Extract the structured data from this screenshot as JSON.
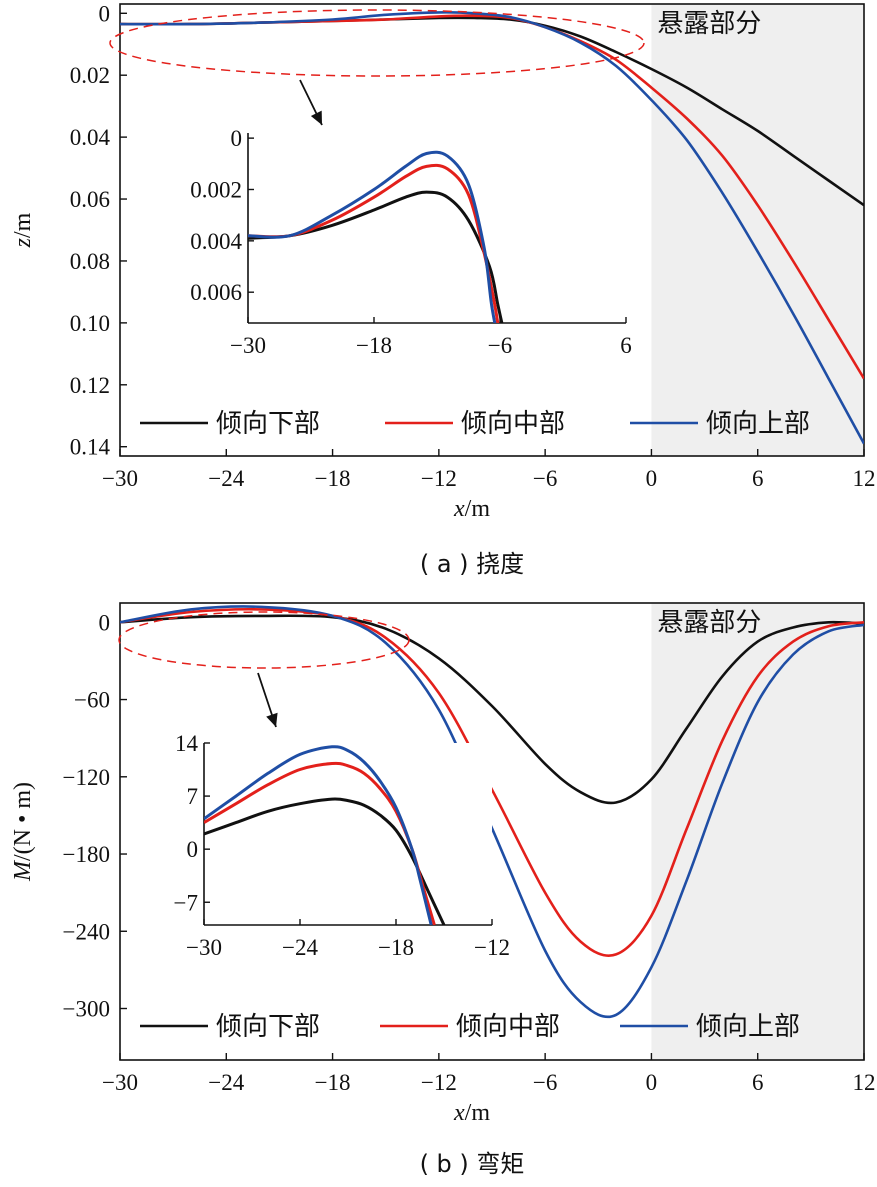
{
  "colors": {
    "lower": "#111111",
    "middle": "#e3201b",
    "upper": "#1f4ea5",
    "region": "#efefef",
    "ellipse": "#e3201b"
  },
  "chart_data": [
    {
      "type": "line",
      "panel": "a",
      "caption": "( a ) 挠度",
      "xlabel_var": "x",
      "xlabel_unit": "/m",
      "ylabel_var": "z",
      "ylabel_unit": "/m",
      "xlim": [
        -30,
        12
      ],
      "ylim": [
        -0.003,
        0.143
      ],
      "y_inverted": true,
      "xticks": [
        -30,
        -24,
        -18,
        -12,
        -6,
        0,
        6,
        12
      ],
      "yticks": [
        0,
        0.02,
        0.04,
        0.06,
        0.08,
        0.1,
        0.12,
        0.14
      ],
      "ytick_labels": [
        "0",
        "0.02",
        "0.04",
        "0.06",
        "0.08",
        "0.10",
        "0.12",
        "0.14"
      ],
      "shaded_region": {
        "x_from": 0,
        "x_to": 12,
        "label": "悬露部分"
      },
      "legend": [
        "倾向下部",
        "倾向中部",
        "倾向上部"
      ],
      "series": [
        {
          "name": "倾向下部",
          "x": [
            -30,
            -26,
            -22,
            -18,
            -15,
            -12,
            -10,
            -8,
            -6,
            -4,
            -2,
            0,
            2,
            4,
            6,
            8,
            10,
            12
          ],
          "y": [
            0.0035,
            0.0035,
            0.003,
            0.0025,
            0.002,
            0.0015,
            0.0015,
            0.002,
            0.004,
            0.0075,
            0.0125,
            0.018,
            0.024,
            0.031,
            0.038,
            0.046,
            0.054,
            0.062
          ]
        },
        {
          "name": "倾向中部",
          "x": [
            -30,
            -26,
            -22,
            -18,
            -15,
            -12,
            -10,
            -8,
            -6,
            -4,
            -2,
            0,
            2,
            4,
            6,
            8,
            10,
            12
          ],
          "y": [
            0.0035,
            0.0035,
            0.003,
            0.0025,
            0.002,
            0.001,
            0.0008,
            0.0015,
            0.0045,
            0.009,
            0.015,
            0.024,
            0.034,
            0.046,
            0.062,
            0.08,
            0.099,
            0.118
          ]
        },
        {
          "name": "倾向上部",
          "x": [
            -30,
            -26,
            -22,
            -18,
            -15,
            -12,
            -10,
            -8,
            -6,
            -4,
            -2,
            0,
            2,
            4,
            6,
            8,
            10,
            12
          ],
          "y": [
            0.0035,
            0.0035,
            0.003,
            0.002,
            0.0005,
            -0.0003,
            0,
            0.0012,
            0.0045,
            0.0095,
            0.017,
            0.028,
            0.041,
            0.058,
            0.077,
            0.097,
            0.118,
            0.139
          ]
        }
      ],
      "inset": {
        "xlim": [
          -30,
          6
        ],
        "ylim": [
          -0.0002,
          0.0072
        ],
        "y_inverted": true,
        "xticks": [
          -30,
          -18,
          -6,
          6
        ],
        "yticks": [
          0,
          0.002,
          0.004,
          0.006
        ],
        "ytick_labels": [
          "0",
          "0.002",
          "0.004",
          "0.006"
        ],
        "series": [
          {
            "name": "倾向下部",
            "x": [
              -30,
              -26,
              -22,
              -18,
              -15,
              -13,
              -11,
              -9,
              -7,
              -6.2,
              -5.5
            ],
            "y": [
              0.0039,
              0.0038,
              0.0034,
              0.0028,
              0.0023,
              0.0021,
              0.0023,
              0.0032,
              0.005,
              0.0065,
              0.0078
            ]
          },
          {
            "name": "倾向中部",
            "x": [
              -30,
              -26,
              -22,
              -18,
              -15,
              -13,
              -11,
              -9,
              -7.5,
              -6.5,
              -6
            ],
            "y": [
              0.0038,
              0.0038,
              0.0032,
              0.0023,
              0.0015,
              0.0011,
              0.0012,
              0.0022,
              0.0045,
              0.0065,
              0.0078
            ]
          },
          {
            "name": "倾向上部",
            "x": [
              -30,
              -26,
              -22,
              -18,
              -15,
              -13,
              -11,
              -9,
              -7.5,
              -6.8,
              -6.2
            ],
            "y": [
              0.0038,
              0.0038,
              0.003,
              0.002,
              0.0011,
              0.0006,
              0.0007,
              0.0018,
              0.0043,
              0.0065,
              0.0078
            ]
          }
        ]
      }
    },
    {
      "type": "line",
      "panel": "b",
      "caption": "( b ) 弯矩",
      "xlabel_var": "x",
      "xlabel_unit": "/m",
      "ylabel_var": "M",
      "ylabel_unit": "/(N • m)",
      "xlim": [
        -30,
        12
      ],
      "ylim": [
        -340,
        15
      ],
      "xticks": [
        -30,
        -24,
        -18,
        -12,
        -6,
        0,
        6,
        12
      ],
      "yticks": [
        0,
        -60,
        -120,
        -180,
        -240,
        -300
      ],
      "ytick_labels": [
        "0",
        "−60",
        "−120",
        "−180",
        "−240",
        "−300"
      ],
      "shaded_region": {
        "x_from": 0,
        "x_to": 12,
        "label": "悬露部分"
      },
      "legend": [
        "倾向下部",
        "倾向中部",
        "倾向上部"
      ],
      "series": [
        {
          "name": "倾向下部",
          "x": [
            -30,
            -26,
            -22,
            -18,
            -15,
            -12,
            -9,
            -6,
            -4,
            -2,
            0,
            2,
            4,
            6,
            8,
            10,
            12
          ],
          "y": [
            0,
            4,
            5,
            4,
            -5,
            -28,
            -65,
            -110,
            -132,
            -140,
            -122,
            -82,
            -42,
            -15,
            -4,
            0,
            -1
          ]
        },
        {
          "name": "倾向中部",
          "x": [
            -30,
            -26,
            -22,
            -18,
            -15,
            -12,
            -9,
            -6,
            -4,
            -2,
            0,
            2,
            4,
            6,
            8,
            10,
            12
          ],
          "y": [
            0,
            8,
            10,
            5,
            -12,
            -55,
            -130,
            -210,
            -248,
            -258,
            -228,
            -160,
            -92,
            -42,
            -15,
            -3,
            0
          ]
        },
        {
          "name": "倾向上部",
          "x": [
            -30,
            -26,
            -22,
            -18,
            -15,
            -12,
            -9,
            -6,
            -4,
            -2,
            0,
            2,
            4,
            6,
            8,
            10,
            12
          ],
          "y": [
            0,
            10,
            12,
            5,
            -16,
            -68,
            -160,
            -255,
            -295,
            -305,
            -268,
            -200,
            -125,
            -62,
            -25,
            -7,
            -2
          ]
        }
      ],
      "inset": {
        "xlim": [
          -30,
          -12
        ],
        "ylim": [
          -10,
          14
        ],
        "xticks": [
          -30,
          -24,
          -18,
          -12
        ],
        "yticks": [
          14,
          7,
          0,
          -7
        ],
        "ytick_labels": [
          "14",
          "7",
          "0",
          "−7"
        ],
        "series": [
          {
            "name": "倾向下部",
            "x": [
              -30,
              -28,
              -26,
              -24,
              -22,
              -21,
              -20,
              -19,
              -18,
              -17,
              -16,
              -15
            ],
            "y": [
              2,
              3.5,
              5,
              6,
              6.6,
              6.4,
              5.8,
              4.5,
              2.5,
              -1,
              -5.5,
              -10
            ]
          },
          {
            "name": "倾向中部",
            "x": [
              -30,
              -28,
              -26,
              -24,
              -22,
              -21,
              -20,
              -19,
              -18,
              -17,
              -16.3,
              -15.6
            ],
            "y": [
              3.5,
              6,
              8.5,
              10.5,
              11.3,
              11,
              10,
              8,
              5,
              0,
              -5,
              -10
            ]
          },
          {
            "name": "倾向上部",
            "x": [
              -30,
              -28,
              -26,
              -24,
              -22,
              -21,
              -20,
              -19,
              -18,
              -17,
              -16.5,
              -15.8
            ],
            "y": [
              4,
              7,
              10,
              12.5,
              13.5,
              13,
              11.5,
              9,
              5.5,
              0,
              -4,
              -10
            ]
          }
        ]
      }
    }
  ]
}
